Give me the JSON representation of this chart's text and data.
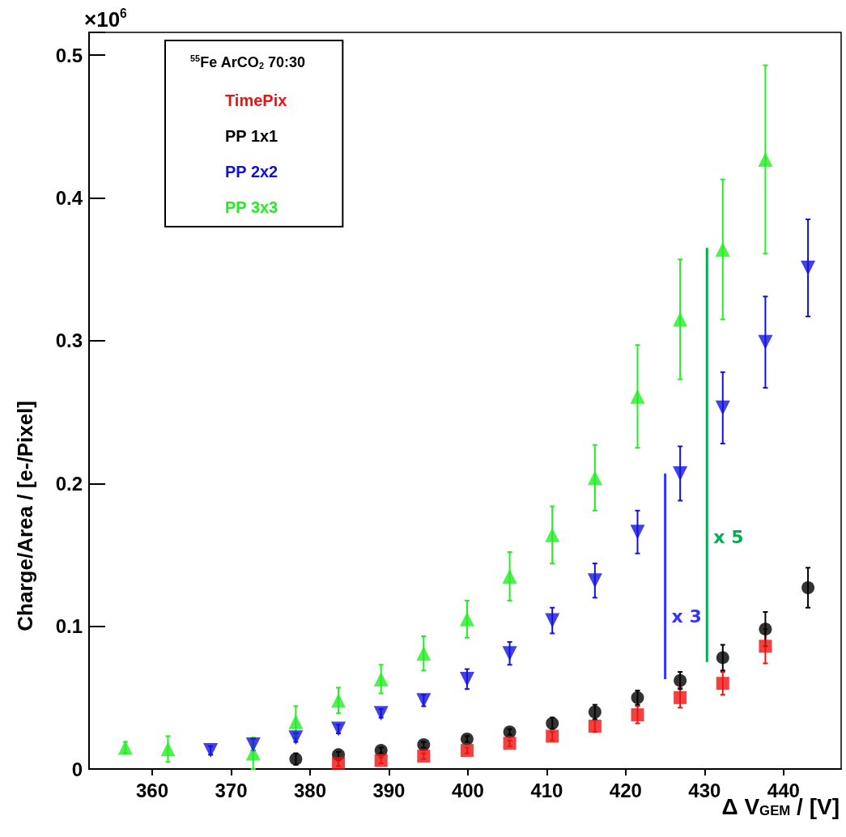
{
  "chart_data": {
    "type": "scatter",
    "xlabel": "Δ V$_{GEM}$ / [V]",
    "ylabel": "Charge/Area / [e-/Pixel]",
    "legend_title": "$^{55}$Fe ArCO$_{2}$ 70:30",
    "annotations": [
      "×10$^{6}$"
    ],
    "xlim": [
      352,
      447.3
    ],
    "xticks": [
      360,
      370,
      380,
      390,
      400,
      410,
      420,
      430,
      440
    ],
    "ylim": [
      0,
      0.516
    ],
    "yticks": [
      0,
      0.1,
      0.2,
      0.3,
      0.4,
      0.5
    ],
    "grid": false,
    "legend": "top left",
    "series": [
      {
        "name": "TimePix",
        "color": "#ee1111",
        "marker": "square",
        "x": [
          383.6,
          389.0,
          394.4,
          399.9,
          405.3,
          410.7,
          416.1,
          421.5,
          426.9,
          432.3,
          437.7
        ],
        "values": [
          0.004,
          0.006,
          0.009,
          0.013,
          0.018,
          0.023,
          0.03,
          0.038,
          0.05,
          0.06,
          0.086
        ],
        "errors": [
          0.002,
          0.002,
          0.002,
          0.002,
          0.002,
          0.003,
          0.004,
          0.006,
          0.007,
          0.008,
          0.012
        ]
      },
      {
        "name": "PP 1x1",
        "color": "#000000",
        "marker": "circle",
        "x": [
          378.2,
          383.6,
          389.0,
          394.4,
          399.9,
          405.3,
          410.7,
          416.1,
          421.5,
          426.9,
          432.3,
          437.7,
          443.1
        ],
        "values": [
          0.007,
          0.01,
          0.013,
          0.017,
          0.021,
          0.026,
          0.032,
          0.04,
          0.05,
          0.062,
          0.078,
          0.098,
          0.127
        ],
        "errors": [
          0.004,
          0.002,
          0.002,
          0.002,
          0.002,
          0.002,
          0.004,
          0.005,
          0.005,
          0.006,
          0.009,
          0.012,
          0.014
        ]
      },
      {
        "name": "PP 2x2",
        "color": "#1111dd",
        "marker": "triangle",
        "x": [
          367.4,
          372.8,
          378.2,
          383.6,
          389.0,
          394.4,
          399.9,
          405.3,
          410.7,
          416.1,
          421.5,
          426.9,
          432.3,
          437.7,
          443.1
        ],
        "values": [
          0.013,
          0.017,
          0.022,
          0.028,
          0.039,
          0.048,
          0.063,
          0.081,
          0.104,
          0.132,
          0.166,
          0.207,
          0.253,
          0.299,
          0.351
        ],
        "errors": [
          0.003,
          0.004,
          0.003,
          0.003,
          0.003,
          0.004,
          0.007,
          0.008,
          0.009,
          0.012,
          0.015,
          0.019,
          0.025,
          0.032,
          0.034
        ]
      },
      {
        "name": "PP 3x3",
        "color": "#22ee22",
        "marker": "triangle",
        "x": [
          356.6,
          362.0,
          367.4,
          372.8,
          378.2,
          383.6,
          389.0,
          394.4,
          399.9,
          405.3,
          410.7,
          416.1,
          421.5,
          426.9,
          432.3,
          437.7
        ],
        "values": [
          0.015,
          0.014,
          null,
          0.011,
          0.033,
          0.048,
          0.063,
          0.081,
          0.105,
          0.135,
          0.164,
          0.204,
          0.261,
          0.315,
          0.364,
          0.427
        ],
        "errors": [
          0.004,
          0.009,
          null,
          0.011,
          0.011,
          0.009,
          0.01,
          0.012,
          0.013,
          0.017,
          0.02,
          0.023,
          0.036,
          0.042,
          0.049,
          0.066
        ]
      },
      {
        "name": "x 3",
        "type": "line",
        "color": "#3333ff",
        "x": [
          425.0,
          425.0
        ],
        "values": [
          0.063,
          0.207
        ]
      },
      {
        "name": "x 5",
        "type": "line",
        "color": "#00b050",
        "x": [
          430.3,
          430.3
        ],
        "values": [
          0.075,
          0.365
        ]
      }
    ]
  }
}
